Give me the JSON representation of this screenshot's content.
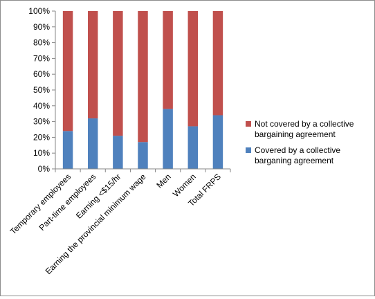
{
  "chart_data": {
    "type": "bar",
    "stacked": true,
    "percent": true,
    "categories": [
      "Temporary employees",
      "Part-time employees",
      "Earning <$15/hr",
      "Earning the provincial minimum wage",
      "Men",
      "Women",
      "Total FRPS"
    ],
    "series": [
      {
        "name": "Covered by a collective barganing agreement",
        "legend_lines": [
          "Covered by a collective",
          "barganing agreement"
        ],
        "color": "#4f81bd",
        "values": [
          24,
          32,
          21,
          17,
          38,
          27,
          34
        ]
      },
      {
        "name": "Not covered by a collective bargaining agreement",
        "legend_lines": [
          "Not covered by a collective",
          "bargaining agreement"
        ],
        "color": "#c0504d",
        "values": [
          76,
          68,
          79,
          83,
          62,
          73,
          66
        ]
      }
    ],
    "y_ticks": [
      "0%",
      "10%",
      "20%",
      "30%",
      "40%",
      "50%",
      "60%",
      "70%",
      "80%",
      "90%",
      "100%"
    ],
    "ylim": [
      0,
      100
    ],
    "title": "",
    "xlabel": "",
    "ylabel": "",
    "grid": false,
    "legend_position": "right"
  }
}
